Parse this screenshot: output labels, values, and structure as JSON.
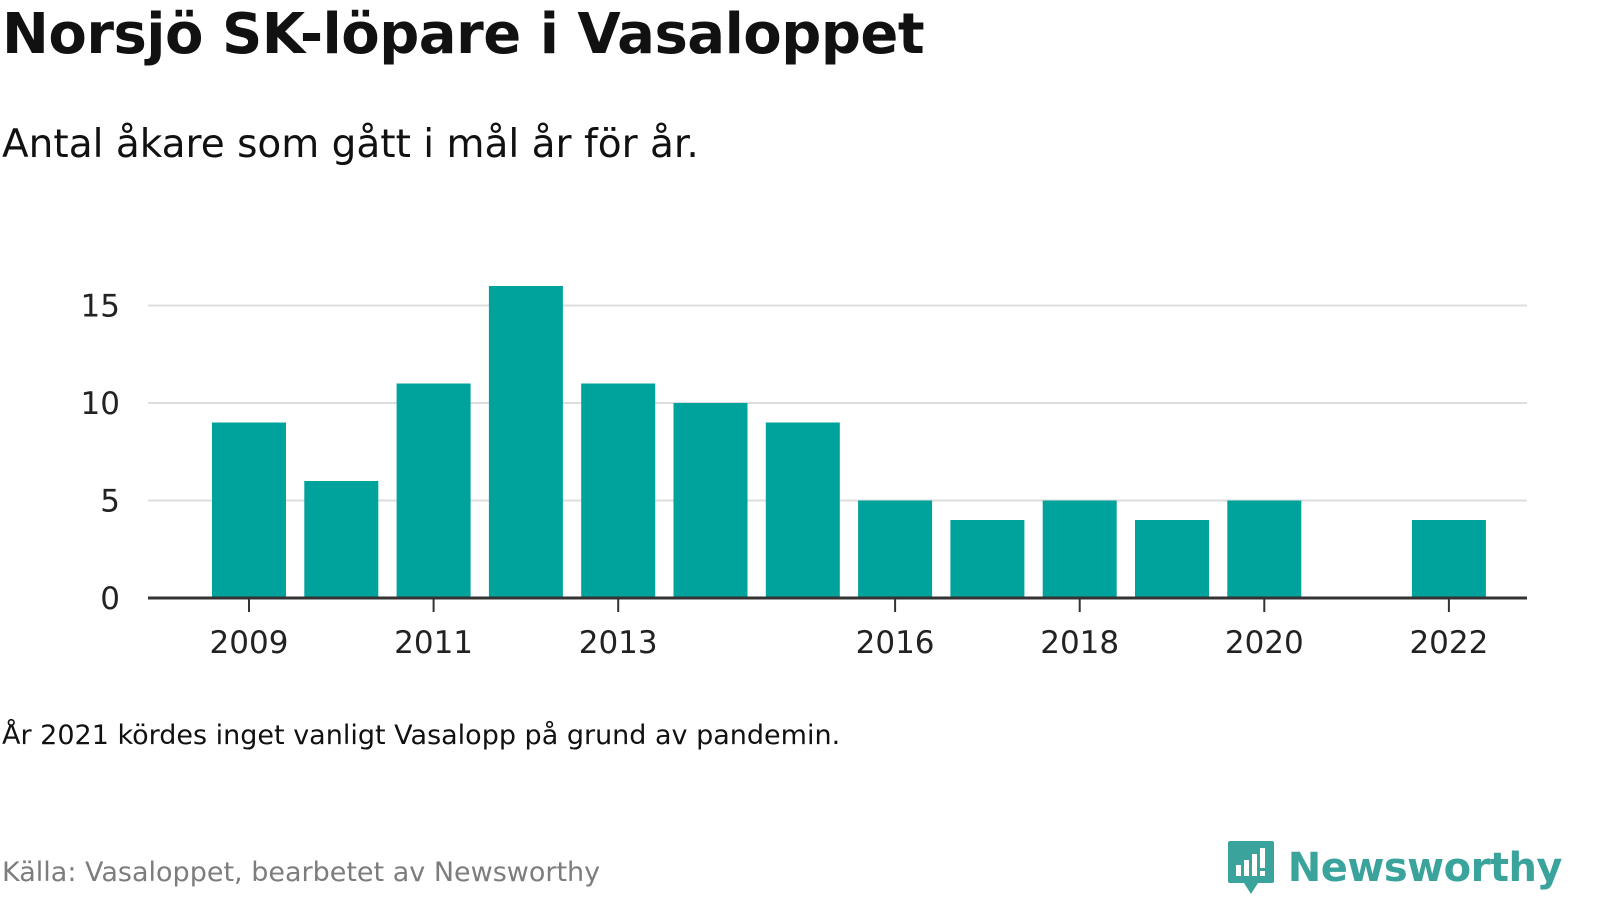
{
  "header": {
    "title": "Norsjö SK-löpare i Vasaloppet",
    "subtitle": "Antal åkare som gått i mål år för år."
  },
  "footer": {
    "note": "År 2021 kördes inget vanligt Vasalopp på grund av pandemin.",
    "source": "Källa: Vasaloppet, bearbetet av Newsworthy",
    "brand": "Newsworthy",
    "brand_color": "#3aa39b"
  },
  "chart_data": {
    "type": "bar",
    "title": "Norsjö SK-löpare i Vasaloppet",
    "subtitle": "Antal åkare som gått i mål år för år.",
    "xlabel": "",
    "ylabel": "",
    "categories": [
      "2009",
      "2010",
      "2011",
      "2012",
      "2013",
      "2014",
      "2015",
      "2016",
      "2017",
      "2018",
      "2019",
      "2020",
      "2021",
      "2022"
    ],
    "values": [
      9,
      6,
      11,
      16,
      11,
      10,
      9,
      5,
      4,
      5,
      4,
      5,
      null,
      4
    ],
    "x_tick_labels": [
      "2009",
      "2011",
      "2013",
      "2016",
      "2018",
      "2020",
      "2022"
    ],
    "y_ticks": [
      0,
      5,
      10,
      15
    ],
    "ylim": [
      0,
      16
    ],
    "grid": true,
    "bar_color": "#00a39b",
    "gridline_color": "#dddddd",
    "axis_color": "#333333"
  }
}
